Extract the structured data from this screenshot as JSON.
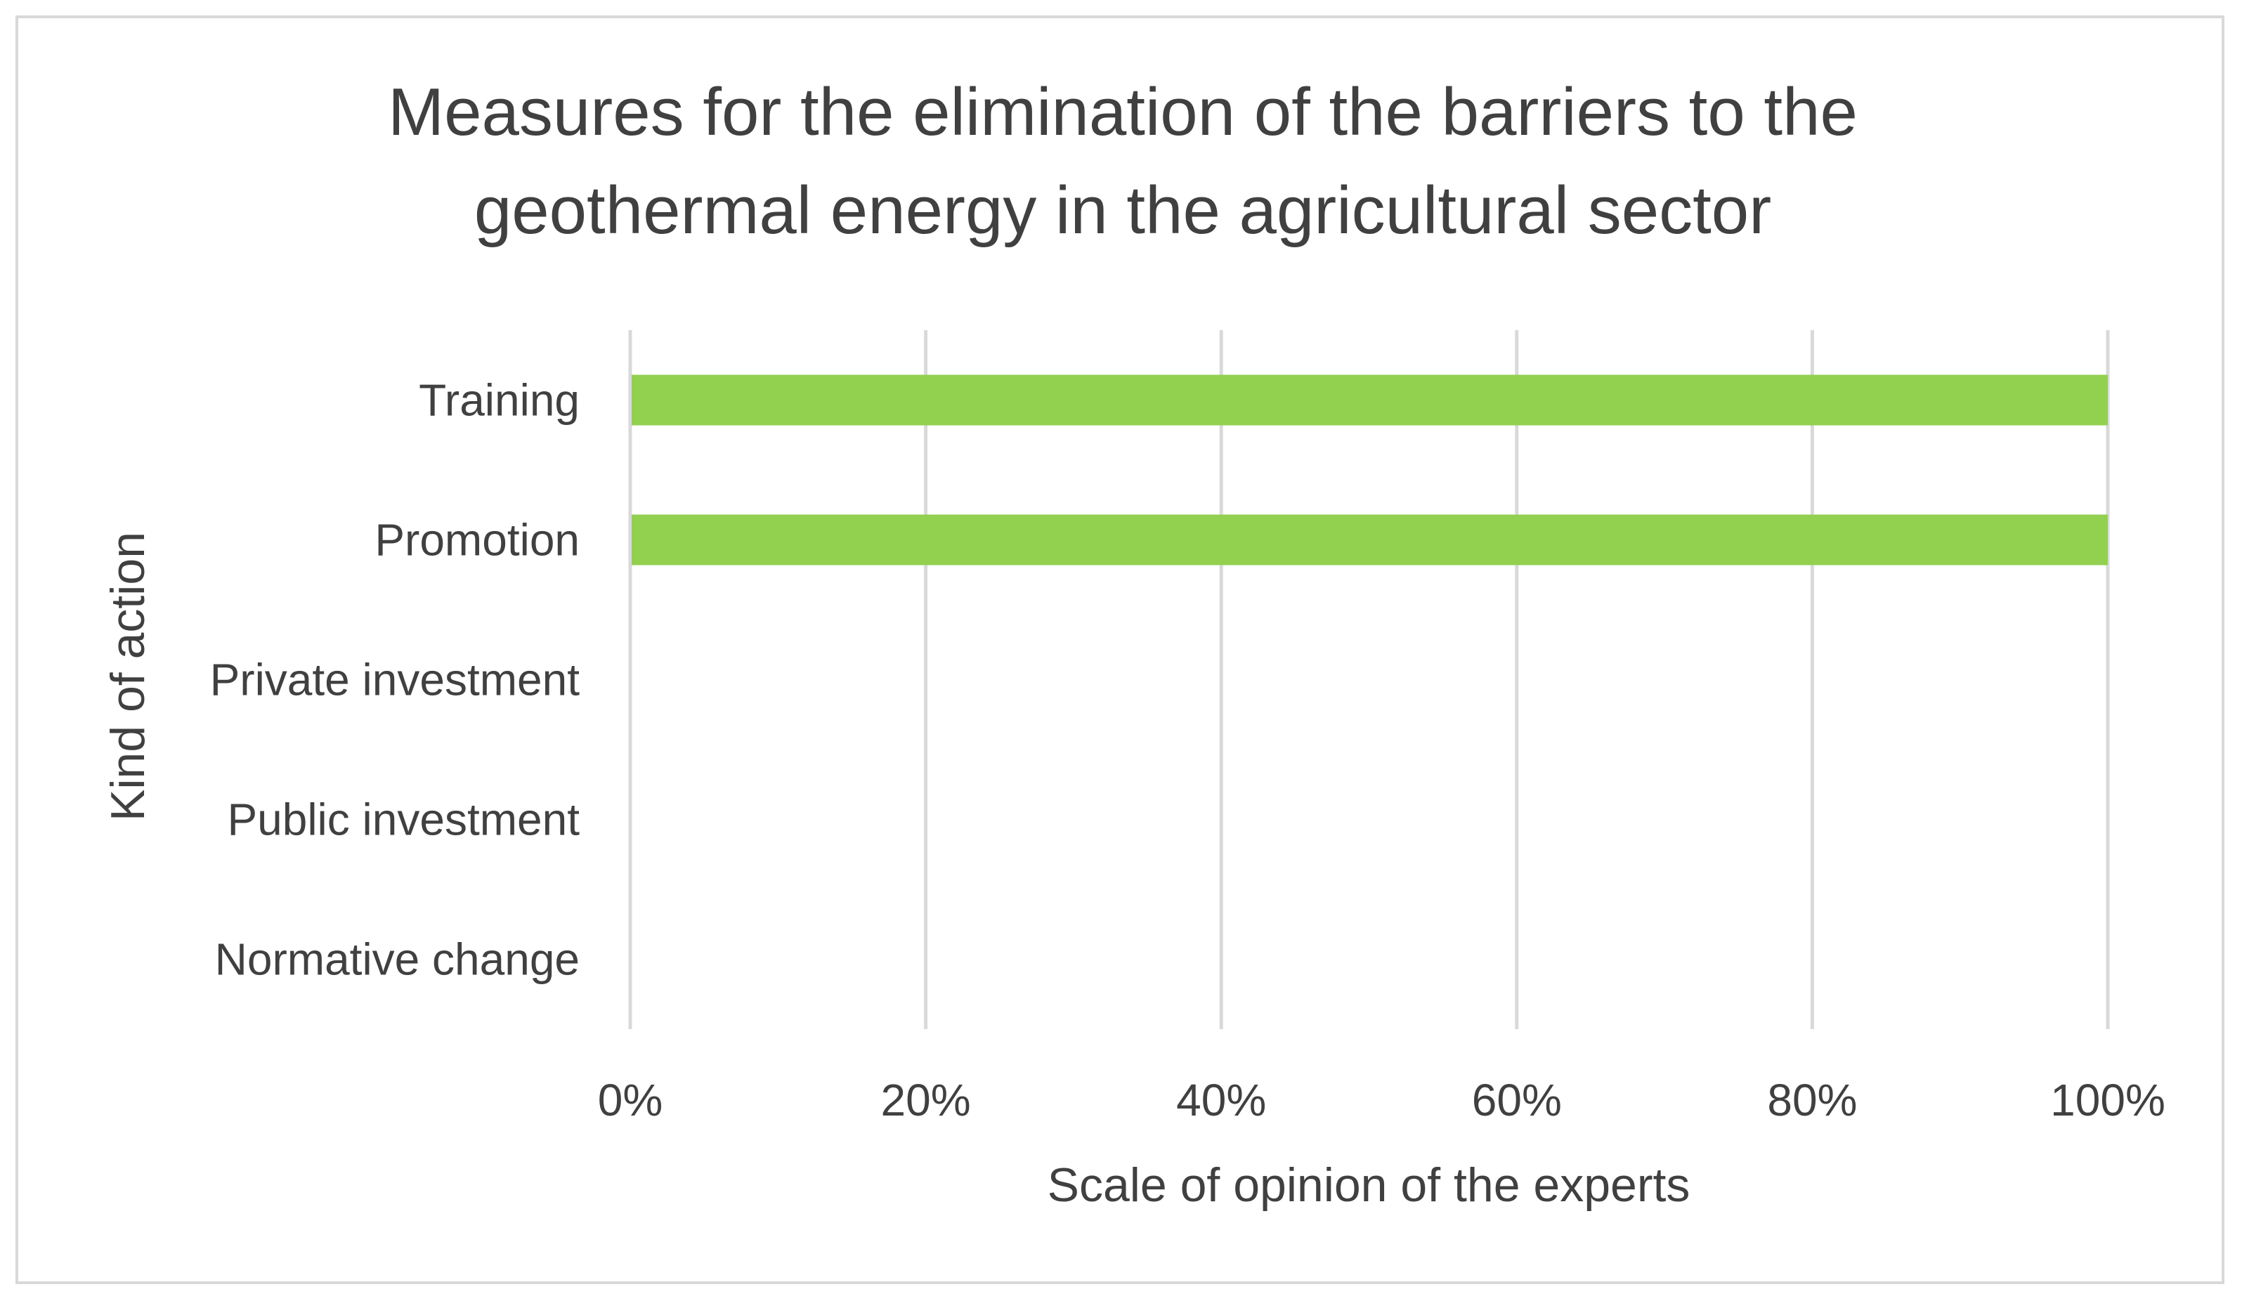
{
  "chart_data": {
    "type": "bar",
    "orientation": "horizontal",
    "title_lines": [
      "Measures for the elimination of the  barriers to the",
      "geothermal energy in the agricultural sector"
    ],
    "categories": [
      "Training",
      "Promotion",
      "Private investment",
      "Public investment",
      "Normative change"
    ],
    "values": [
      1.0,
      1.0,
      0,
      0,
      0
    ],
    "xlabel": "Scale of opinion of the experts",
    "ylabel": "Kind of action",
    "xlim": [
      0,
      1
    ],
    "x_ticks": [
      "0%",
      "20%",
      "40%",
      "60%",
      "80%",
      "100%"
    ],
    "grid": "vertical",
    "bar_color": "#92d050",
    "grid_color": "#d9d9d9",
    "text_color": "#404040"
  }
}
